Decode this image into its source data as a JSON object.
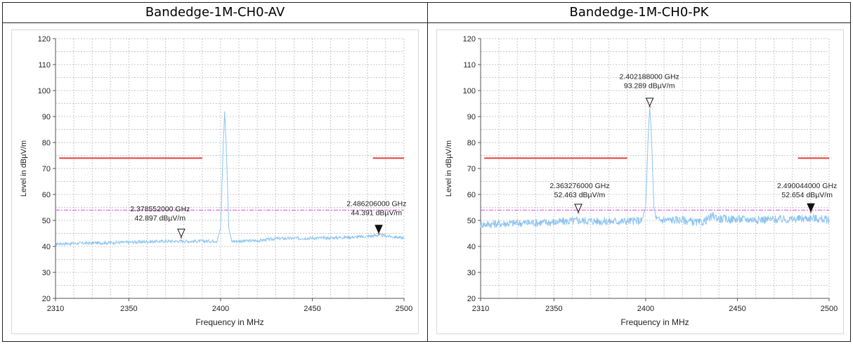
{
  "page": {
    "left_title": "Bandedge-1M-CH0-AV",
    "right_title": "Bandedge-1M-CH0-PK"
  },
  "chart_data": [
    {
      "type": "line",
      "title": "Bandedge-1M-CH0-AV",
      "xlabel": "Frequency in MHz",
      "ylabel": "Level in dBµV/m",
      "xlim": [
        2310,
        2500
      ],
      "ylim": [
        20,
        120
      ],
      "xticks": [
        2310,
        2350,
        2400,
        2450,
        2500
      ],
      "yticks": [
        20,
        30,
        40,
        50,
        60,
        70,
        80,
        90,
        100,
        110,
        120
      ],
      "grid": true,
      "colors": {
        "trace": "#8cc4f0",
        "limit": "#e8403a",
        "ref": "#dd44dd"
      },
      "series": [
        {
          "role": "trace",
          "x": [
            2310,
            2330,
            2350,
            2370,
            2390,
            2398,
            2400,
            2401.5,
            2402.2,
            2403,
            2404.5,
            2406,
            2420,
            2430,
            2440,
            2460,
            2480,
            2486,
            2500
          ],
          "y": [
            41.0,
            41.3,
            41.6,
            42.0,
            42.0,
            42.1,
            47.0,
            80.0,
            92.0,
            80.0,
            47.0,
            42.0,
            42.2,
            43.0,
            43.1,
            43.3,
            43.8,
            44.4,
            43.2
          ]
        },
        {
          "role": "limit",
          "segments": [
            {
              "x": [
                2312,
                2390
              ],
              "y": [
                74,
                74
              ]
            },
            {
              "x": [
                2483,
                2500
              ],
              "y": [
                74,
                74
              ]
            }
          ]
        },
        {
          "role": "ref",
          "x": [
            2310,
            2500
          ],
          "y": [
            54,
            54
          ]
        }
      ],
      "markers": [
        {
          "x": 2378.552,
          "y": 42.897,
          "style": "open",
          "freq": "2.378552000 GHz",
          "level": "42.897 dBµV/m",
          "label_x": 2367,
          "label_y": 53.5
        },
        {
          "x": 2486.206,
          "y": 44.391,
          "style": "filled",
          "freq": "2.486206000 GHz",
          "level": "44.391 dBµV/m",
          "label_x": 2485,
          "label_y": 55.5
        }
      ]
    },
    {
      "type": "line",
      "title": "Bandedge-1M-CH0-PK",
      "xlabel": "Frequency in MHz",
      "ylabel": "Level in dBµV/m",
      "xlim": [
        2310,
        2500
      ],
      "ylim": [
        20,
        120
      ],
      "xticks": [
        2310,
        2350,
        2400,
        2450,
        2500
      ],
      "yticks": [
        20,
        30,
        40,
        50,
        60,
        70,
        80,
        90,
        100,
        110,
        120
      ],
      "grid": true,
      "colors": {
        "trace": "#8cc4f0",
        "limit": "#e8403a",
        "ref": "#dd44dd"
      },
      "series": [
        {
          "role": "trace",
          "x": [
            2310,
            2330,
            2350,
            2363,
            2380,
            2398,
            2400,
            2401.5,
            2402.2,
            2403,
            2404.5,
            2406,
            2420,
            2430,
            2437,
            2440,
            2460,
            2480,
            2490,
            2500
          ],
          "y": [
            48.5,
            49.0,
            49.3,
            50.0,
            49.6,
            49.9,
            55.0,
            85.0,
            93.3,
            85.0,
            55.0,
            50.2,
            50.2,
            49.0,
            51.8,
            50.6,
            50.4,
            50.4,
            51.0,
            50.2
          ]
        },
        {
          "role": "limit",
          "segments": [
            {
              "x": [
                2312,
                2390
              ],
              "y": [
                74,
                74
              ]
            },
            {
              "x": [
                2483,
                2500
              ],
              "y": [
                74,
                74
              ]
            }
          ]
        },
        {
          "role": "ref",
          "x": [
            2310,
            2500
          ],
          "y": [
            54,
            54
          ]
        }
      ],
      "markers": [
        {
          "x": 2363.276,
          "y": 52.463,
          "style": "open",
          "freq": "2.363276000 GHz",
          "level": "52.463 dBµV/m",
          "label_x": 2364,
          "label_y": 62.5
        },
        {
          "x": 2402.188,
          "y": 93.289,
          "style": "open",
          "freq": "2.402188000 GHz",
          "level": "93.289 dBµV/m",
          "label_x": 2402,
          "label_y": 104.5
        },
        {
          "x": 2490.044,
          "y": 52.654,
          "style": "filled",
          "freq": "2.490044000 GHz",
          "level": "52.654 dBµV/m",
          "label_x": 2488,
          "label_y": 62.5
        }
      ]
    }
  ]
}
